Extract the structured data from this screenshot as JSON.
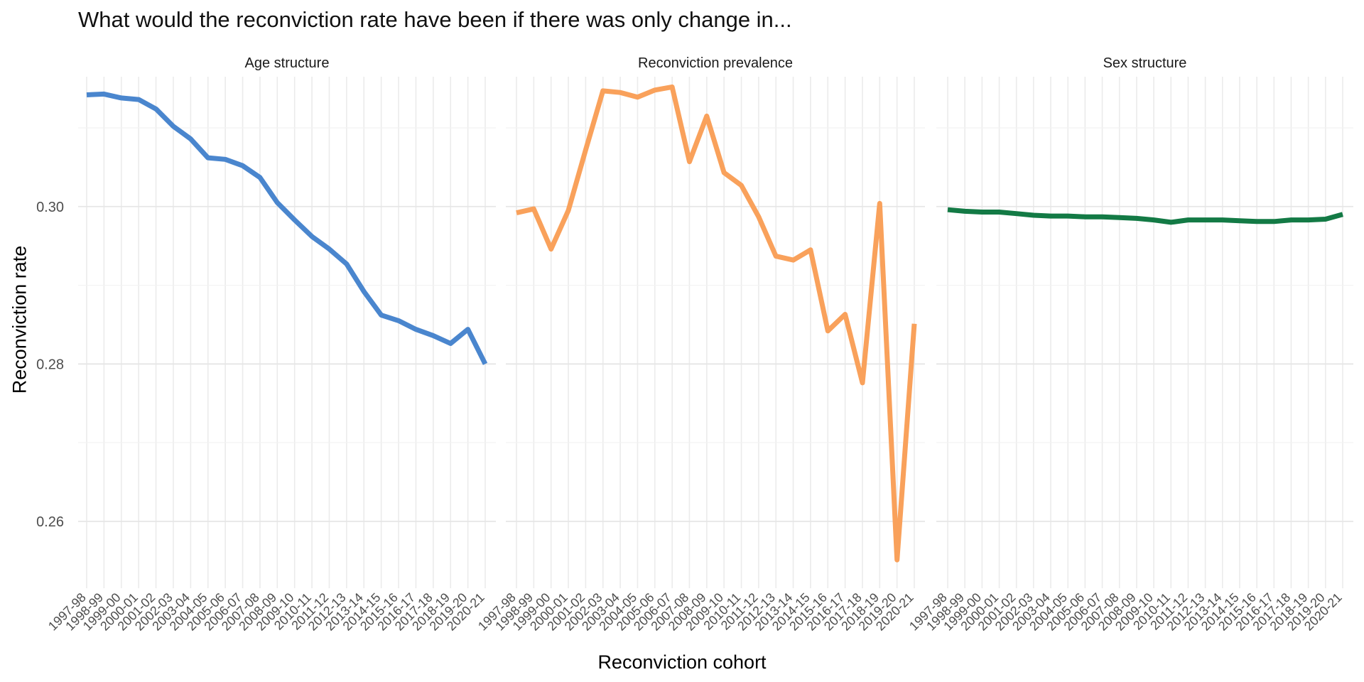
{
  "chart_data": {
    "type": "line",
    "title": "What would the reconviction rate have been if there was only change in...",
    "xlabel": "Reconviction cohort",
    "ylabel": "Reconviction rate",
    "ylim": [
      0.2515,
      0.3165
    ],
    "yticks": [
      0.26,
      0.28,
      0.3
    ],
    "ytick_labels": [
      "0.26",
      "0.28",
      "0.30"
    ],
    "grid": true,
    "categories": [
      "1997-98",
      "1998-99",
      "1999-00",
      "2000-01",
      "2001-02",
      "2002-03",
      "2003-04",
      "2004-05",
      "2005-06",
      "2006-07",
      "2007-08",
      "2008-09",
      "2009-10",
      "2010-11",
      "2011-12",
      "2012-13",
      "2013-14",
      "2014-15",
      "2015-16",
      "2016-17",
      "2017-18",
      "2018-19",
      "2019-20",
      "2020-21"
    ],
    "panels": [
      {
        "title": "Age structure",
        "color": "#4A86CE",
        "values": [
          0.3142,
          0.3143,
          0.3138,
          0.3136,
          0.3124,
          0.3102,
          0.3086,
          0.3062,
          0.306,
          0.3052,
          0.3037,
          0.3005,
          0.2983,
          0.2962,
          0.2946,
          0.2927,
          0.2892,
          0.2862,
          0.2855,
          0.2844,
          0.2836,
          0.2826,
          0.2844,
          0.28
        ]
      },
      {
        "title": "Reconviction prevalence",
        "color": "#F9A15B",
        "values": [
          0.2992,
          0.2997,
          0.2946,
          0.2995,
          0.3072,
          0.3147,
          0.3145,
          0.3139,
          0.3148,
          0.3152,
          0.3057,
          0.3115,
          0.3043,
          0.3027,
          0.2987,
          0.2937,
          0.2932,
          0.2945,
          0.2842,
          0.2863,
          0.2776,
          0.3004,
          0.2551,
          0.2851
        ]
      },
      {
        "title": "Sex structure",
        "color": "#137A45",
        "values": [
          0.2996,
          0.2994,
          0.2993,
          0.2993,
          0.2991,
          0.2989,
          0.2988,
          0.2988,
          0.2987,
          0.2987,
          0.2986,
          0.2985,
          0.2983,
          0.298,
          0.2983,
          0.2983,
          0.2983,
          0.2982,
          0.2981,
          0.2981,
          0.2983,
          0.2983,
          0.2984,
          0.299
        ]
      }
    ]
  }
}
